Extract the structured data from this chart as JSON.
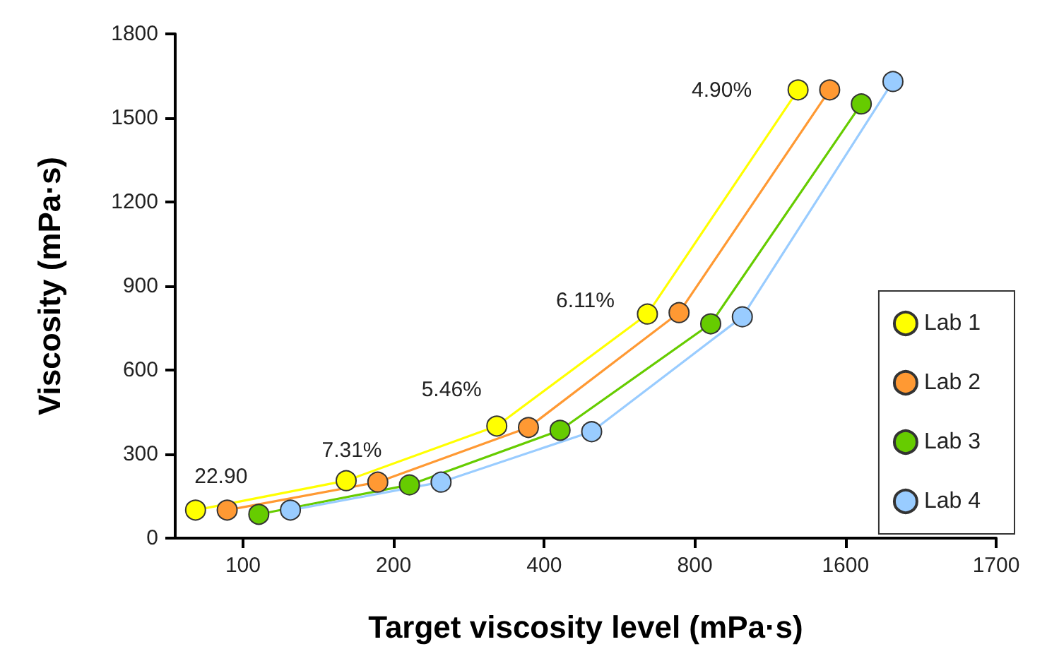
{
  "chart_data": {
    "type": "line",
    "xlabel": "Target viscosity level (mPa·s)",
    "ylabel": "Viscosity (mPa·s)",
    "categories": [
      "100",
      "200",
      "400",
      "800",
      "1600",
      "1700"
    ],
    "ylim": [
      0,
      1800
    ],
    "yticks": [
      0,
      300,
      600,
      900,
      1200,
      1500,
      1800
    ],
    "grid": false,
    "legend": "bottom right",
    "marker": "circle",
    "line_style": "solid",
    "series": [
      {
        "name": "Lab 1",
        "color": "#ffff00",
        "values": [
          100,
          205,
          400,
          800,
          1600,
          null
        ]
      },
      {
        "name": "Lab 2",
        "color": "#ff9933",
        "values": [
          100,
          200,
          395,
          805,
          1600,
          null
        ]
      },
      {
        "name": "Lab 3",
        "color": "#66cc00",
        "values": [
          85,
          190,
          385,
          765,
          1550,
          null
        ]
      },
      {
        "name": "Lab 4",
        "color": "#99ccff",
        "values": [
          100,
          200,
          380,
          790,
          1630,
          null
        ]
      }
    ],
    "annotations": [
      "22.90",
      "7.31%",
      "5.46%",
      "6.11%",
      "4.90%"
    ]
  }
}
